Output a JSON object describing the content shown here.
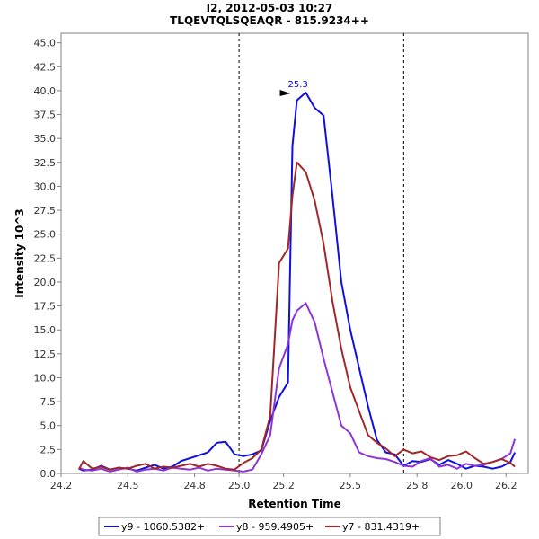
{
  "chart_data": {
    "type": "line",
    "title": "I2, 2012-05-03 10:27",
    "subtitle": "TLQEVTQLSQEAQR - 815.9234++",
    "xlabel": "Retention Time",
    "ylabel": "Intensity 10^3",
    "xlim": [
      24.2,
      26.3
    ],
    "ylim": [
      0,
      46
    ],
    "xticks": [
      24.2,
      24.5,
      24.8,
      25.0,
      25.2,
      25.5,
      25.8,
      26.0,
      26.2
    ],
    "xtick_labels": [
      "24.2",
      "24.5",
      "24.8",
      "25.0",
      "25.2",
      "25.5",
      "25.8",
      "26.0",
      "26.2"
    ],
    "yticks": [
      0,
      2.5,
      5,
      7.5,
      10,
      12.5,
      15,
      17.5,
      20,
      22.5,
      25,
      27.5,
      30,
      32.5,
      35,
      37.5,
      40,
      42.5,
      45
    ],
    "ytick_labels": [
      "0.0",
      "2.5",
      "5.0",
      "7.5",
      "10.0",
      "12.5",
      "15.0",
      "17.5",
      "20.0",
      "22.5",
      "25.0",
      "27.5",
      "30.0",
      "32.5",
      "35.0",
      "37.5",
      "40.0",
      "42.5",
      "45.0"
    ],
    "vlines": [
      25.0,
      25.74
    ],
    "annotation": {
      "label": "25.3",
      "x": 25.24,
      "y": 39.8
    },
    "legend_position": "bottom",
    "series": [
      {
        "name": "y9 - 1060.5382+",
        "color": "#1010e0",
        "x": [
          24.28,
          24.3,
          24.34,
          24.38,
          24.42,
          24.46,
          24.5,
          24.54,
          24.58,
          24.62,
          24.66,
          24.7,
          24.74,
          24.78,
          24.82,
          24.86,
          24.9,
          24.94,
          24.98,
          25.02,
          25.06,
          25.1,
          25.14,
          25.18,
          25.22,
          25.24,
          25.26,
          25.3,
          25.34,
          25.38,
          25.42,
          25.46,
          25.5,
          25.54,
          25.58,
          25.62,
          25.66,
          25.7,
          25.74,
          25.78,
          25.82,
          25.86,
          25.9,
          25.94,
          25.98,
          26.02,
          26.06,
          26.1,
          26.14,
          26.18,
          26.22,
          26.24
        ],
        "y": [
          0.5,
          0.3,
          0.4,
          0.8,
          0.4,
          0.6,
          0.5,
          0.3,
          0.6,
          0.9,
          0.5,
          0.7,
          1.3,
          1.6,
          1.9,
          2.2,
          3.2,
          3.3,
          2.0,
          1.8,
          2.0,
          2.4,
          5.5,
          8.0,
          9.5,
          34.2,
          39.0,
          39.8,
          38.2,
          37.4,
          29.0,
          20.0,
          15.0,
          11.0,
          7.0,
          3.5,
          2.2,
          2.0,
          0.8,
          1.3,
          1.2,
          1.5,
          0.9,
          1.4,
          1.0,
          0.5,
          0.8,
          0.7,
          0.5,
          0.7,
          1.2,
          2.2
        ]
      },
      {
        "name": "y8 - 959.4905+",
        "color": "#8e35d6",
        "x": [
          24.28,
          24.3,
          24.34,
          24.38,
          24.42,
          24.46,
          24.5,
          24.54,
          24.58,
          24.62,
          24.66,
          24.7,
          24.74,
          24.78,
          24.82,
          24.86,
          24.9,
          24.94,
          24.98,
          25.02,
          25.06,
          25.1,
          25.14,
          25.18,
          25.22,
          25.24,
          25.26,
          25.3,
          25.34,
          25.38,
          25.42,
          25.46,
          25.5,
          25.54,
          25.58,
          25.62,
          25.66,
          25.7,
          25.74,
          25.78,
          25.82,
          25.86,
          25.9,
          25.94,
          25.98,
          26.02,
          26.06,
          26.1,
          26.14,
          26.18,
          26.22,
          26.24
        ],
        "y": [
          0.6,
          0.4,
          0.3,
          0.5,
          0.2,
          0.4,
          0.6,
          0.2,
          0.4,
          0.5,
          0.3,
          0.6,
          0.5,
          0.4,
          0.6,
          0.3,
          0.5,
          0.4,
          0.3,
          0.2,
          0.4,
          2.0,
          4.0,
          11.0,
          13.5,
          16.0,
          17.0,
          17.8,
          15.8,
          12.0,
          8.5,
          5.0,
          4.2,
          2.2,
          1.8,
          1.6,
          1.5,
          1.2,
          0.8,
          0.7,
          1.3,
          1.6,
          0.7,
          0.9,
          0.5,
          1.0,
          0.8,
          0.9,
          1.2,
          1.5,
          2.1,
          3.6
        ]
      },
      {
        "name": "y7 - 831.4319+",
        "color": "#a02828",
        "x": [
          24.28,
          24.3,
          24.34,
          24.38,
          24.42,
          24.46,
          24.5,
          24.54,
          24.58,
          24.62,
          24.66,
          24.7,
          24.74,
          24.78,
          24.82,
          24.86,
          24.9,
          24.94,
          24.98,
          25.02,
          25.06,
          25.1,
          25.14,
          25.18,
          25.22,
          25.24,
          25.26,
          25.3,
          25.34,
          25.38,
          25.42,
          25.46,
          25.5,
          25.54,
          25.58,
          25.62,
          25.66,
          25.7,
          25.74,
          25.78,
          25.82,
          25.86,
          25.9,
          25.94,
          25.98,
          26.02,
          26.06,
          26.1,
          26.14,
          26.18,
          26.22,
          26.24
        ],
        "y": [
          0.4,
          1.3,
          0.5,
          0.7,
          0.4,
          0.6,
          0.5,
          0.8,
          1.0,
          0.5,
          0.7,
          0.6,
          0.8,
          1.0,
          0.7,
          1.0,
          0.8,
          0.5,
          0.4,
          1.1,
          1.6,
          2.5,
          6.0,
          22.0,
          23.5,
          29.0,
          32.5,
          31.5,
          28.5,
          24.0,
          18.0,
          13.0,
          9.0,
          6.5,
          4.0,
          3.2,
          2.6,
          1.8,
          2.5,
          2.1,
          2.3,
          1.7,
          1.4,
          1.8,
          1.9,
          2.3,
          1.6,
          1.0,
          1.2,
          1.5,
          1.1,
          0.7
        ]
      }
    ]
  }
}
